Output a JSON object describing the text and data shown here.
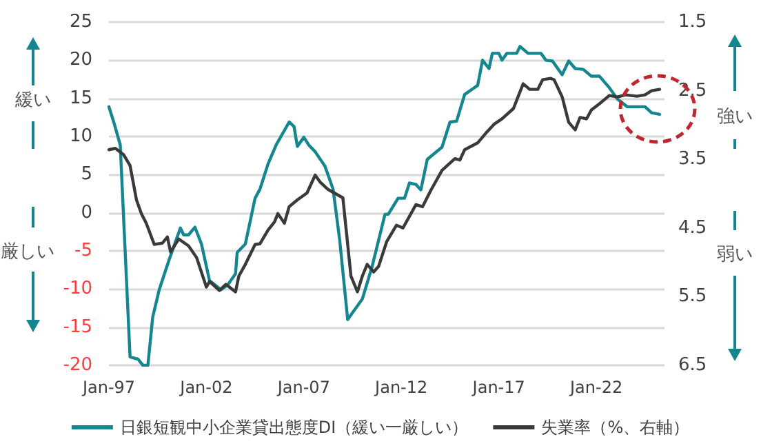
{
  "chart_data": {
    "type": "line",
    "xlim": [
      "1997-01",
      "2025-07"
    ],
    "xticks": [
      {
        "value": "1997-01",
        "label": "Jan-97"
      },
      {
        "value": "2002-01",
        "label": "Jan-02"
      },
      {
        "value": "2007-01",
        "label": "Jan-07"
      },
      {
        "value": "2012-01",
        "label": "Jan-12"
      },
      {
        "value": "2017-01",
        "label": "Jan-17"
      },
      {
        "value": "2022-01",
        "label": "Jan-22"
      }
    ],
    "ylim": [
      -20,
      25
    ],
    "yticks": [
      -20,
      -15,
      -10,
      -5,
      0,
      5,
      10,
      15,
      20,
      25
    ],
    "y2lim": [
      6.5,
      1.5
    ],
    "y2ticks": [
      1.5,
      2.5,
      3.5,
      4.5,
      5.5,
      6.5
    ],
    "grid": "y",
    "legend": "bottom",
    "marker": "none",
    "line_style": "solid",
    "annotations": [
      "緩い",
      "厳しい",
      "強い",
      "弱い"
    ],
    "series": [
      {
        "name": "日銀短観中小企業貸出態度DI（緩い一厳しい）",
        "color": "#13868f",
        "x": [
          "1997-01",
          "1997-04",
          "1997-08",
          "1998-02",
          "1998-07",
          "1998-10",
          "1999-01",
          "1999-04",
          "1999-08",
          "2000-02",
          "2000-09",
          "2000-11",
          "2001-02",
          "2001-06",
          "2001-10",
          "2002-03",
          "2002-06",
          "2002-10",
          "2003-02",
          "2003-07",
          "2003-08",
          "2004-01",
          "2004-07",
          "2004-10",
          "2005-03",
          "2005-08",
          "2006-04",
          "2006-07",
          "2006-09",
          "2007-01",
          "2007-04",
          "2007-08",
          "2008-02",
          "2008-07",
          "2008-11",
          "2009-04",
          "2010-01",
          "2010-07",
          "2011-03",
          "2011-05",
          "2011-11",
          "2012-03",
          "2012-06",
          "2012-10",
          "2013-01",
          "2013-05",
          "2014-02",
          "2014-07",
          "2014-11",
          "2015-04",
          "2015-08",
          "2015-12",
          "2016-03",
          "2016-07",
          "2016-09",
          "2017-01",
          "2017-03",
          "2017-06",
          "2017-12",
          "2018-02",
          "2018-07",
          "2019-03",
          "2019-06",
          "2019-10",
          "2020-04",
          "2020-08",
          "2020-12",
          "2021-05",
          "2021-10",
          "2022-03",
          "2022-09",
          "2023-02",
          "2023-08",
          "2024-07",
          "2024-11",
          "2025-04"
        ],
        "values": [
          13.9,
          11.9,
          8.9,
          -18.9,
          -19.2,
          -20,
          -20,
          -13.7,
          -10.1,
          -6.2,
          -2.0,
          -2.9,
          -2.9,
          -1.9,
          -4.1,
          -8.9,
          -9.4,
          -10.1,
          -9.5,
          -8.0,
          -5.2,
          -4.1,
          1.9,
          3.1,
          6.4,
          8.9,
          11.9,
          11.3,
          8.7,
          9.9,
          8.9,
          8.0,
          6.1,
          3.1,
          -3.5,
          -14.0,
          -11.3,
          -7.1,
          -0.2,
          -0.2,
          1.9,
          1.9,
          3.9,
          3.7,
          3.0,
          7.0,
          8.6,
          11.9,
          12.0,
          15.5,
          16.1,
          16.7,
          20.0,
          18.9,
          20.9,
          20.9,
          20.0,
          20.9,
          20.9,
          21.8,
          20.9,
          20.9,
          20.0,
          19.9,
          18.1,
          19.9,
          18.9,
          18.8,
          17.9,
          17.9,
          16.4,
          14.9,
          13.9,
          13.9,
          13.1,
          12.9
        ]
      },
      {
        "name": "失業率（%、右軸）",
        "color": "#3a3a3a",
        "axis": "y2",
        "x": [
          "1997-01",
          "1997-05",
          "1997-10",
          "1998-02",
          "1998-06",
          "1998-09",
          "1998-12",
          "1999-05",
          "1999-10",
          "2000-01",
          "2000-03",
          "2000-08",
          "2001-02",
          "2001-07",
          "2002-01",
          "2002-03",
          "2002-09",
          "2003-01",
          "2003-07",
          "2003-09",
          "2004-01",
          "2004-07",
          "2004-10",
          "2005-03",
          "2005-07",
          "2005-09",
          "2006-01",
          "2006-04",
          "2006-09",
          "2007-03",
          "2007-08",
          "2007-11",
          "2008-04",
          "2009-01",
          "2009-06",
          "2009-10",
          "2010-01",
          "2010-04",
          "2010-08",
          "2010-11",
          "2011-04",
          "2011-10",
          "2012-02",
          "2012-10",
          "2013-02",
          "2013-07",
          "2014-02",
          "2014-10",
          "2015-01",
          "2015-04",
          "2015-12",
          "2016-05",
          "2016-10",
          "2017-03",
          "2017-10",
          "2018-04",
          "2018-08",
          "2019-01",
          "2019-04",
          "2019-09",
          "2019-11",
          "2020-04",
          "2020-08",
          "2020-12",
          "2021-03",
          "2021-07",
          "2021-10",
          "2022-03",
          "2022-09",
          "2023-02",
          "2023-07",
          "2024-02",
          "2024-07",
          "2024-11",
          "2025-04"
        ],
        "values": [
          3.36,
          3.34,
          3.43,
          3.59,
          4.09,
          4.29,
          4.43,
          4.74,
          4.72,
          4.63,
          4.85,
          4.66,
          4.76,
          4.93,
          5.36,
          5.28,
          5.41,
          5.32,
          5.43,
          5.2,
          5.03,
          4.74,
          4.73,
          4.53,
          4.41,
          4.29,
          4.43,
          4.19,
          4.09,
          3.99,
          3.73,
          3.83,
          3.94,
          4.06,
          5.2,
          5.43,
          5.2,
          5.03,
          5.14,
          5.06,
          4.7,
          4.46,
          4.5,
          4.16,
          4.19,
          3.96,
          3.66,
          3.49,
          3.51,
          3.36,
          3.26,
          3.12,
          2.99,
          2.91,
          2.76,
          2.4,
          2.48,
          2.48,
          2.34,
          2.32,
          2.34,
          2.59,
          2.96,
          3.07,
          2.89,
          2.91,
          2.78,
          2.69,
          2.57,
          2.59,
          2.56,
          2.58,
          2.56,
          2.5,
          2.48
        ]
      }
    ]
  }
}
